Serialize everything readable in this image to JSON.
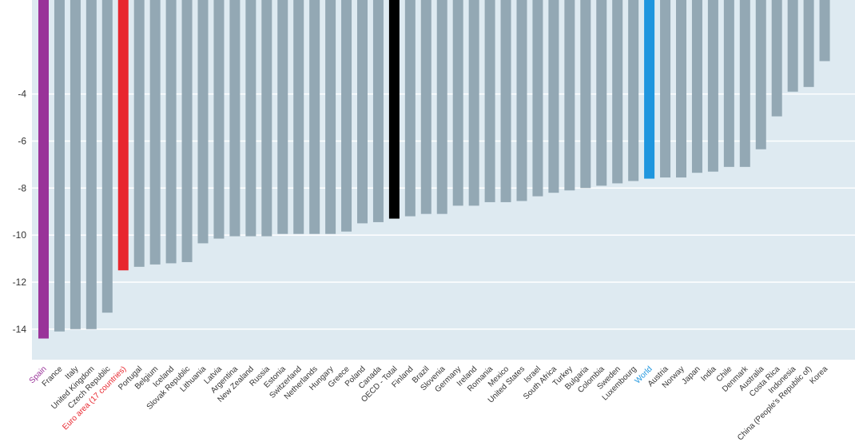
{
  "chart_data": {
    "type": "bar",
    "title": "",
    "xlabel": "",
    "ylabel": "",
    "ylim": [
      -15.3,
      0
    ],
    "y_ticks": [
      -4,
      -6,
      -8,
      -10,
      -12,
      -14
    ],
    "y_tick_labels": [
      "-4",
      "-6",
      "-8",
      "-10",
      "-12",
      "-14"
    ],
    "grid": true,
    "categories": [
      "Spain",
      "France",
      "Italy",
      "United Kingdom",
      "Czech Republic",
      "Euro area (17 countries)",
      "Portugal",
      "Belgium",
      "Iceland",
      "Slovak Republic",
      "Lithuania",
      "Latvia",
      "Argentina",
      "New Zealand",
      "Russia",
      "Estonia",
      "Switzerland",
      "Netherlands",
      "Hungary",
      "Greece",
      "Poland",
      "Canada",
      "OECD - Total",
      "Finland",
      "Brazil",
      "Slovenia",
      "Germany",
      "Ireland",
      "Romania",
      "Mexico",
      "United States",
      "Israel",
      "South Africa",
      "Turkey",
      "Bulgaria",
      "Colombia",
      "Sweden",
      "Luxembourg",
      "World",
      "Austria",
      "Norway",
      "Japan",
      "India",
      "Chile",
      "Denmark",
      "Australia",
      "Costa Rica",
      "Indonesia",
      "China (People's Republic of)",
      "Korea"
    ],
    "values": [
      -14.4,
      -14.1,
      -14.0,
      -14.0,
      -13.3,
      -11.5,
      -11.35,
      -11.25,
      -11.2,
      -11.15,
      -10.35,
      -10.15,
      -10.05,
      -10.05,
      -10.05,
      -9.95,
      -9.95,
      -9.95,
      -9.95,
      -9.85,
      -9.5,
      -9.45,
      -9.3,
      -9.2,
      -9.1,
      -9.1,
      -8.75,
      -8.75,
      -8.6,
      -8.6,
      -8.55,
      -8.35,
      -8.2,
      -8.1,
      -8.0,
      -7.9,
      -7.8,
      -7.7,
      -7.6,
      -7.55,
      -7.55,
      -7.35,
      -7.3,
      -7.1,
      -7.1,
      -6.35,
      -4.95,
      -3.9,
      -3.7,
      -2.6
    ],
    "colors": {
      "default": "#93a8b4",
      "Spain": "#993399",
      "Euro area (17 countries)": "#e8262e",
      "OECD - Total": "#000000",
      "World": "#1f96de"
    },
    "label_colors": {
      "default": "#333333",
      "Spain": "#993399",
      "Euro area (17 countries)": "#e8262e",
      "World": "#1f96de"
    },
    "plot_background": "#deeaf1",
    "grid_color": "#ffffff"
  }
}
